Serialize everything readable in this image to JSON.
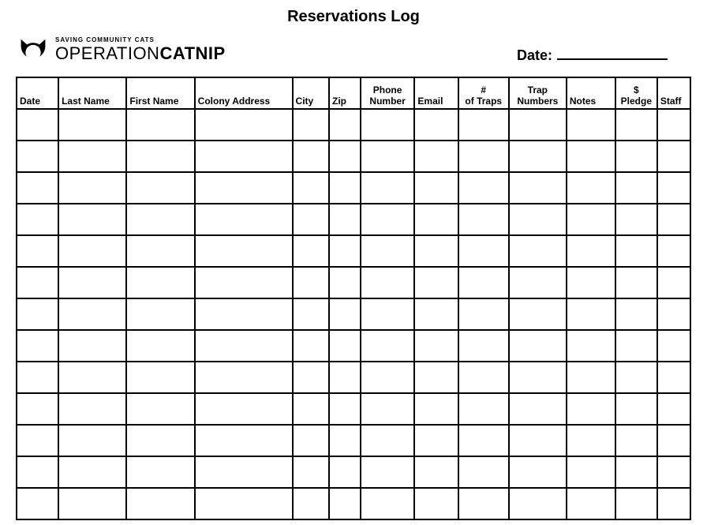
{
  "page": {
    "title": "Reservations Log",
    "background_color": "#ffffff",
    "text_color": "#000000"
  },
  "logo": {
    "tagline": "SAVING COMMUNITY CATS",
    "name_light": "OPERATION",
    "name_bold": "CATNIP"
  },
  "date_field": {
    "label": "Date:",
    "value": ""
  },
  "table": {
    "columns": [
      {
        "label": "Date",
        "width": 48,
        "align": "left",
        "lines": [
          "Date"
        ]
      },
      {
        "label": "Last Name",
        "width": 78,
        "align": "left",
        "lines": [
          "Last Name"
        ]
      },
      {
        "label": "First Name",
        "width": 78,
        "align": "left",
        "lines": [
          "First Name"
        ]
      },
      {
        "label": "Colony Address",
        "width": 112,
        "align": "left",
        "lines": [
          "Colony Address"
        ]
      },
      {
        "label": "City",
        "width": 42,
        "align": "left",
        "lines": [
          "City"
        ]
      },
      {
        "label": "Zip",
        "width": 36,
        "align": "left",
        "lines": [
          "Zip"
        ]
      },
      {
        "label": "Phone Number",
        "width": 62,
        "align": "center",
        "lines": [
          "Phone",
          "Number"
        ]
      },
      {
        "label": "Email",
        "width": 50,
        "align": "left",
        "lines": [
          "Email"
        ]
      },
      {
        "label": "# of Traps",
        "width": 58,
        "align": "center",
        "lines": [
          "#",
          "of Traps"
        ]
      },
      {
        "label": "Trap Numbers",
        "width": 66,
        "align": "center",
        "lines": [
          "Trap",
          "Numbers"
        ]
      },
      {
        "label": "Notes",
        "width": 56,
        "align": "left",
        "lines": [
          "Notes"
        ]
      },
      {
        "label": "$ Pledge",
        "width": 48,
        "align": "center",
        "lines": [
          "$",
          "Pledge"
        ]
      },
      {
        "label": "Staff",
        "width": 38,
        "align": "left",
        "lines": [
          "Staff"
        ]
      }
    ],
    "row_count": 13,
    "border_color": "#000000",
    "header_fontsize": 12
  }
}
